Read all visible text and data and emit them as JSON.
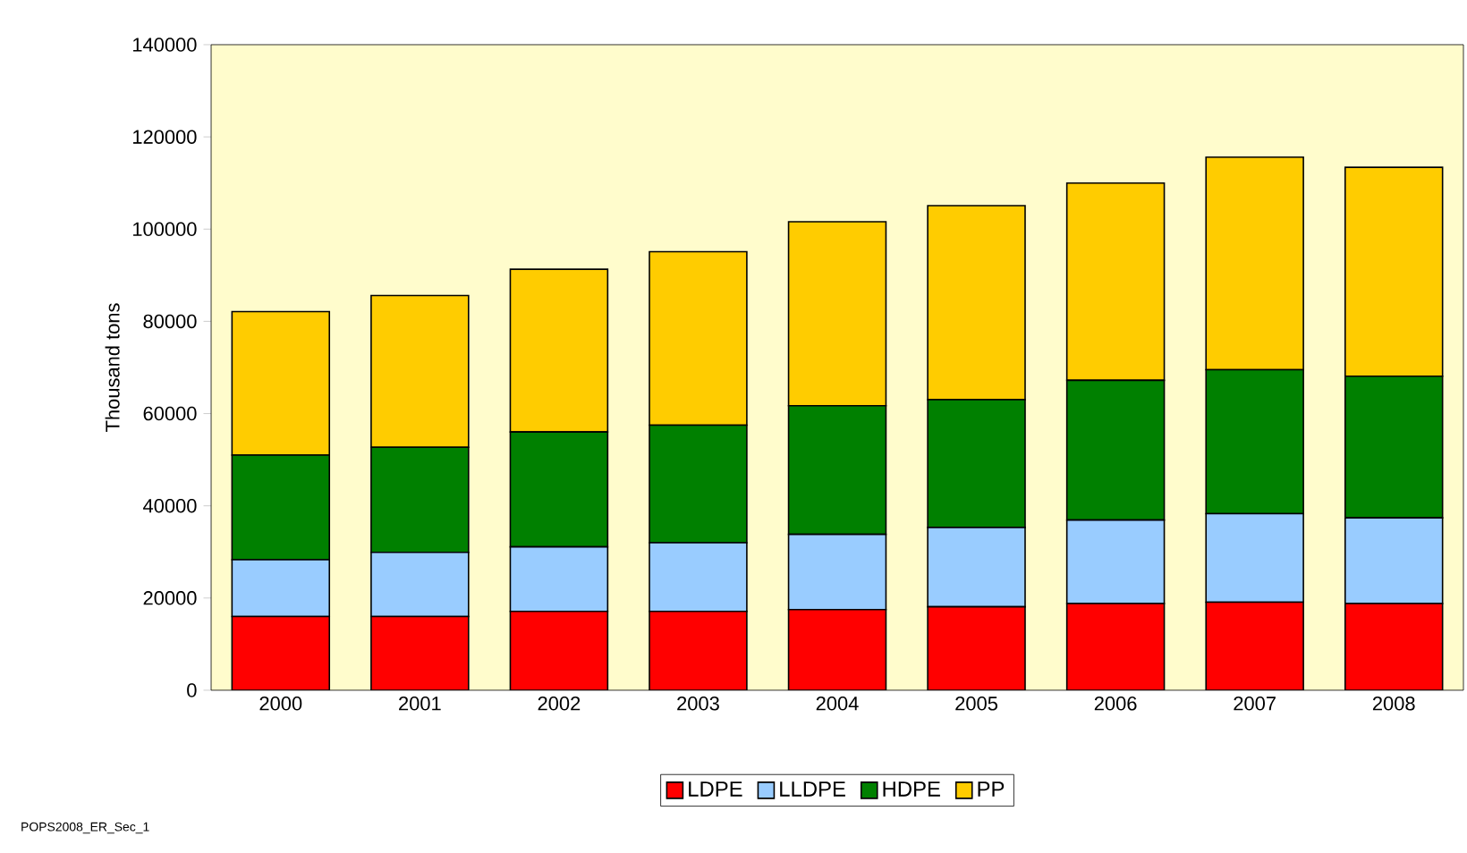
{
  "chart_data": {
    "type": "bar",
    "stacked": true,
    "ylabel": "Thousand tons",
    "categories": [
      "2000",
      "2001",
      "2002",
      "2003",
      "2004",
      "2005",
      "2006",
      "2007",
      "2008"
    ],
    "series": [
      {
        "name": "LDPE",
        "color": "#ff0000",
        "values": [
          16000,
          16000,
          17100,
          17100,
          17500,
          18100,
          18800,
          19100,
          18800
        ]
      },
      {
        "name": "LLDPE",
        "color": "#99ccff",
        "values": [
          12300,
          13900,
          14000,
          14900,
          16300,
          17200,
          18100,
          19200,
          18600
        ]
      },
      {
        "name": "HDPE",
        "color": "#008000",
        "values": [
          22700,
          22800,
          24900,
          25500,
          27900,
          27700,
          30300,
          31200,
          30700
        ]
      },
      {
        "name": "PP",
        "color": "#ffcc00",
        "values": [
          31100,
          32900,
          35300,
          37600,
          39900,
          42100,
          42800,
          46100,
          45300
        ]
      }
    ],
    "ylim": [
      0,
      140000
    ],
    "yticks": [
      0,
      20000,
      40000,
      60000,
      80000,
      100000,
      120000,
      140000
    ],
    "grid": false,
    "legend": "bottom",
    "annotations": [
      "POPS2008_ER_Sec_1"
    ]
  }
}
